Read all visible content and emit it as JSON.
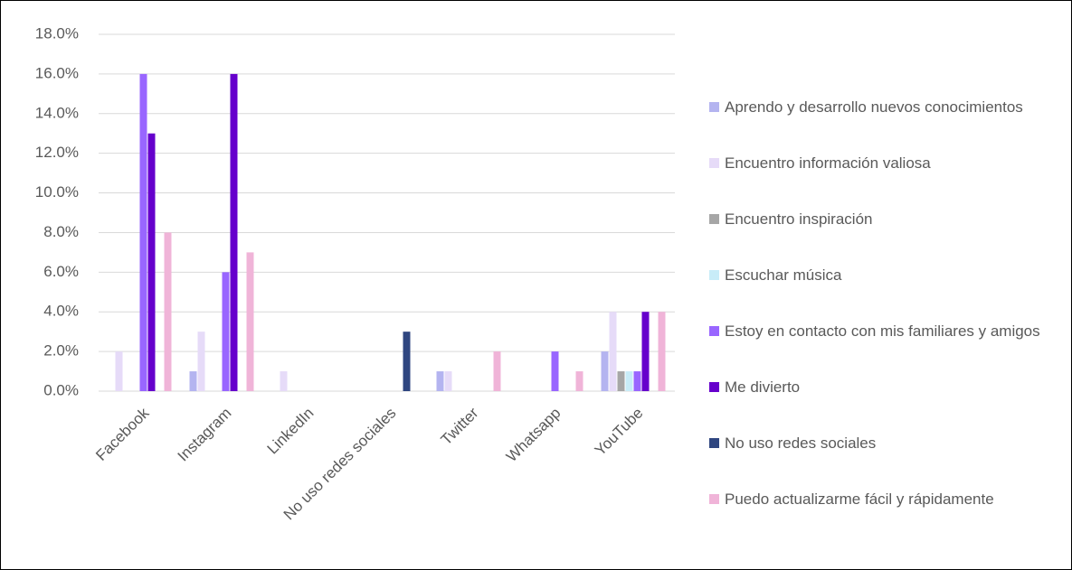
{
  "chart_data": {
    "type": "bar",
    "categories": [
      "Facebook",
      "Instagram",
      "LinkedIn",
      "No uso redes sociales",
      "Twitter",
      "Whatsapp",
      "YouTube"
    ],
    "series": [
      {
        "name": "Aprendo y desarrollo nuevos conocimientos",
        "color": "#b4b4f0",
        "values": [
          0,
          1,
          0,
          0,
          1,
          0,
          2
        ]
      },
      {
        "name": "Encuentro información valiosa",
        "color": "#e6dbf8",
        "values": [
          2,
          3,
          1,
          0,
          1,
          0,
          4
        ]
      },
      {
        "name": "Encuentro inspiración",
        "color": "#a6a6a6",
        "values": [
          0,
          0,
          0,
          0,
          0,
          0,
          1
        ]
      },
      {
        "name": "Escuchar música",
        "color": "#c8ecf8",
        "values": [
          0,
          0,
          0,
          0,
          0,
          0,
          1
        ]
      },
      {
        "name": "Estoy en contacto con mis familiares y amigos",
        "color": "#9966ff",
        "values": [
          16,
          6,
          0,
          0,
          0,
          2,
          1
        ]
      },
      {
        "name": "Me divierto",
        "color": "#6600cc",
        "values": [
          13,
          16,
          0,
          0,
          0,
          0,
          4
        ]
      },
      {
        "name": "No uso redes sociales",
        "color": "#2f4680",
        "values": [
          0,
          0,
          0,
          3,
          0,
          0,
          0
        ]
      },
      {
        "name": "Puedo actualizarme fácil y rápidamente",
        "color": "#f0b4d8",
        "values": [
          8,
          7,
          0,
          0,
          2,
          1,
          4
        ]
      }
    ],
    "ylim": [
      0,
      18
    ],
    "yticks": [
      {
        "value": 0,
        "label": "0.0%"
      },
      {
        "value": 2,
        "label": "2.0%"
      },
      {
        "value": 4,
        "label": "4.0%"
      },
      {
        "value": 6,
        "label": "6.0%"
      },
      {
        "value": 8,
        "label": "8.0%"
      },
      {
        "value": 10,
        "label": "10.0%"
      },
      {
        "value": 12,
        "label": "12.0%"
      },
      {
        "value": 14,
        "label": "14.0%"
      },
      {
        "value": 16,
        "label": "16.0%"
      },
      {
        "value": 18,
        "label": "18.0%"
      }
    ],
    "grid": true,
    "legend": "right"
  }
}
